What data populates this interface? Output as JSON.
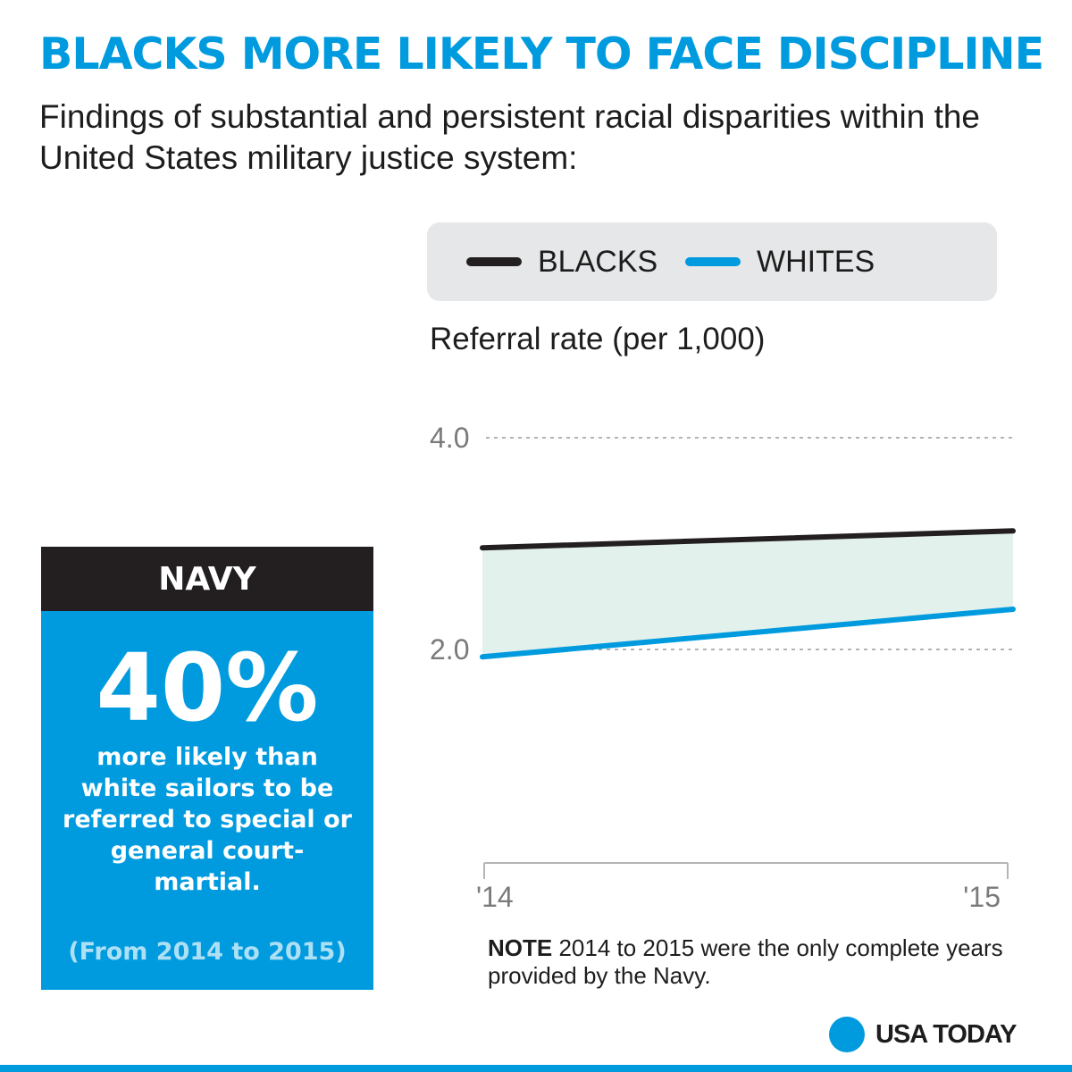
{
  "headline": "BLACKS MORE LIKELY TO FACE DISCIPLINE",
  "subhead": "Findings of substantial and persistent racial disparities within the United States military justice system:",
  "legend": [
    {
      "label": "BLACKS",
      "color": "#231f20"
    },
    {
      "label": "WHITES",
      "color": "#009bde"
    }
  ],
  "panel": {
    "title": "NAVY",
    "stat": "40%",
    "description": "more likely than white sailors to be referred to special or general court-martial.",
    "years": "(From 2014 to 2015)"
  },
  "note": {
    "lead": "NOTE",
    "text": " 2014 to 2015 were the only complete years provided by the Navy."
  },
  "logo": {
    "text": "USA TODAY"
  },
  "colors": {
    "accent": "#009bde",
    "dark": "#231f20",
    "fill": "#e3f1ec"
  },
  "chart_data": {
    "type": "line",
    "title": "Referral rate (per 1,000)",
    "xlabel": "",
    "ylabel": "Referral rate (per 1,000)",
    "categories": [
      "'14",
      "'15"
    ],
    "series": [
      {
        "name": "BLACKS",
        "values": [
          2.96,
          3.12
        ]
      },
      {
        "name": "WHITES",
        "values": [
          1.93,
          2.38
        ]
      }
    ],
    "yticks": [
      {
        "value": 2.0,
        "label": "2.0"
      },
      {
        "value": 4.0,
        "label": "4.0"
      }
    ],
    "ylim": [
      2.0,
      4.0
    ],
    "shaded_gap": true,
    "grid": "dashed"
  }
}
